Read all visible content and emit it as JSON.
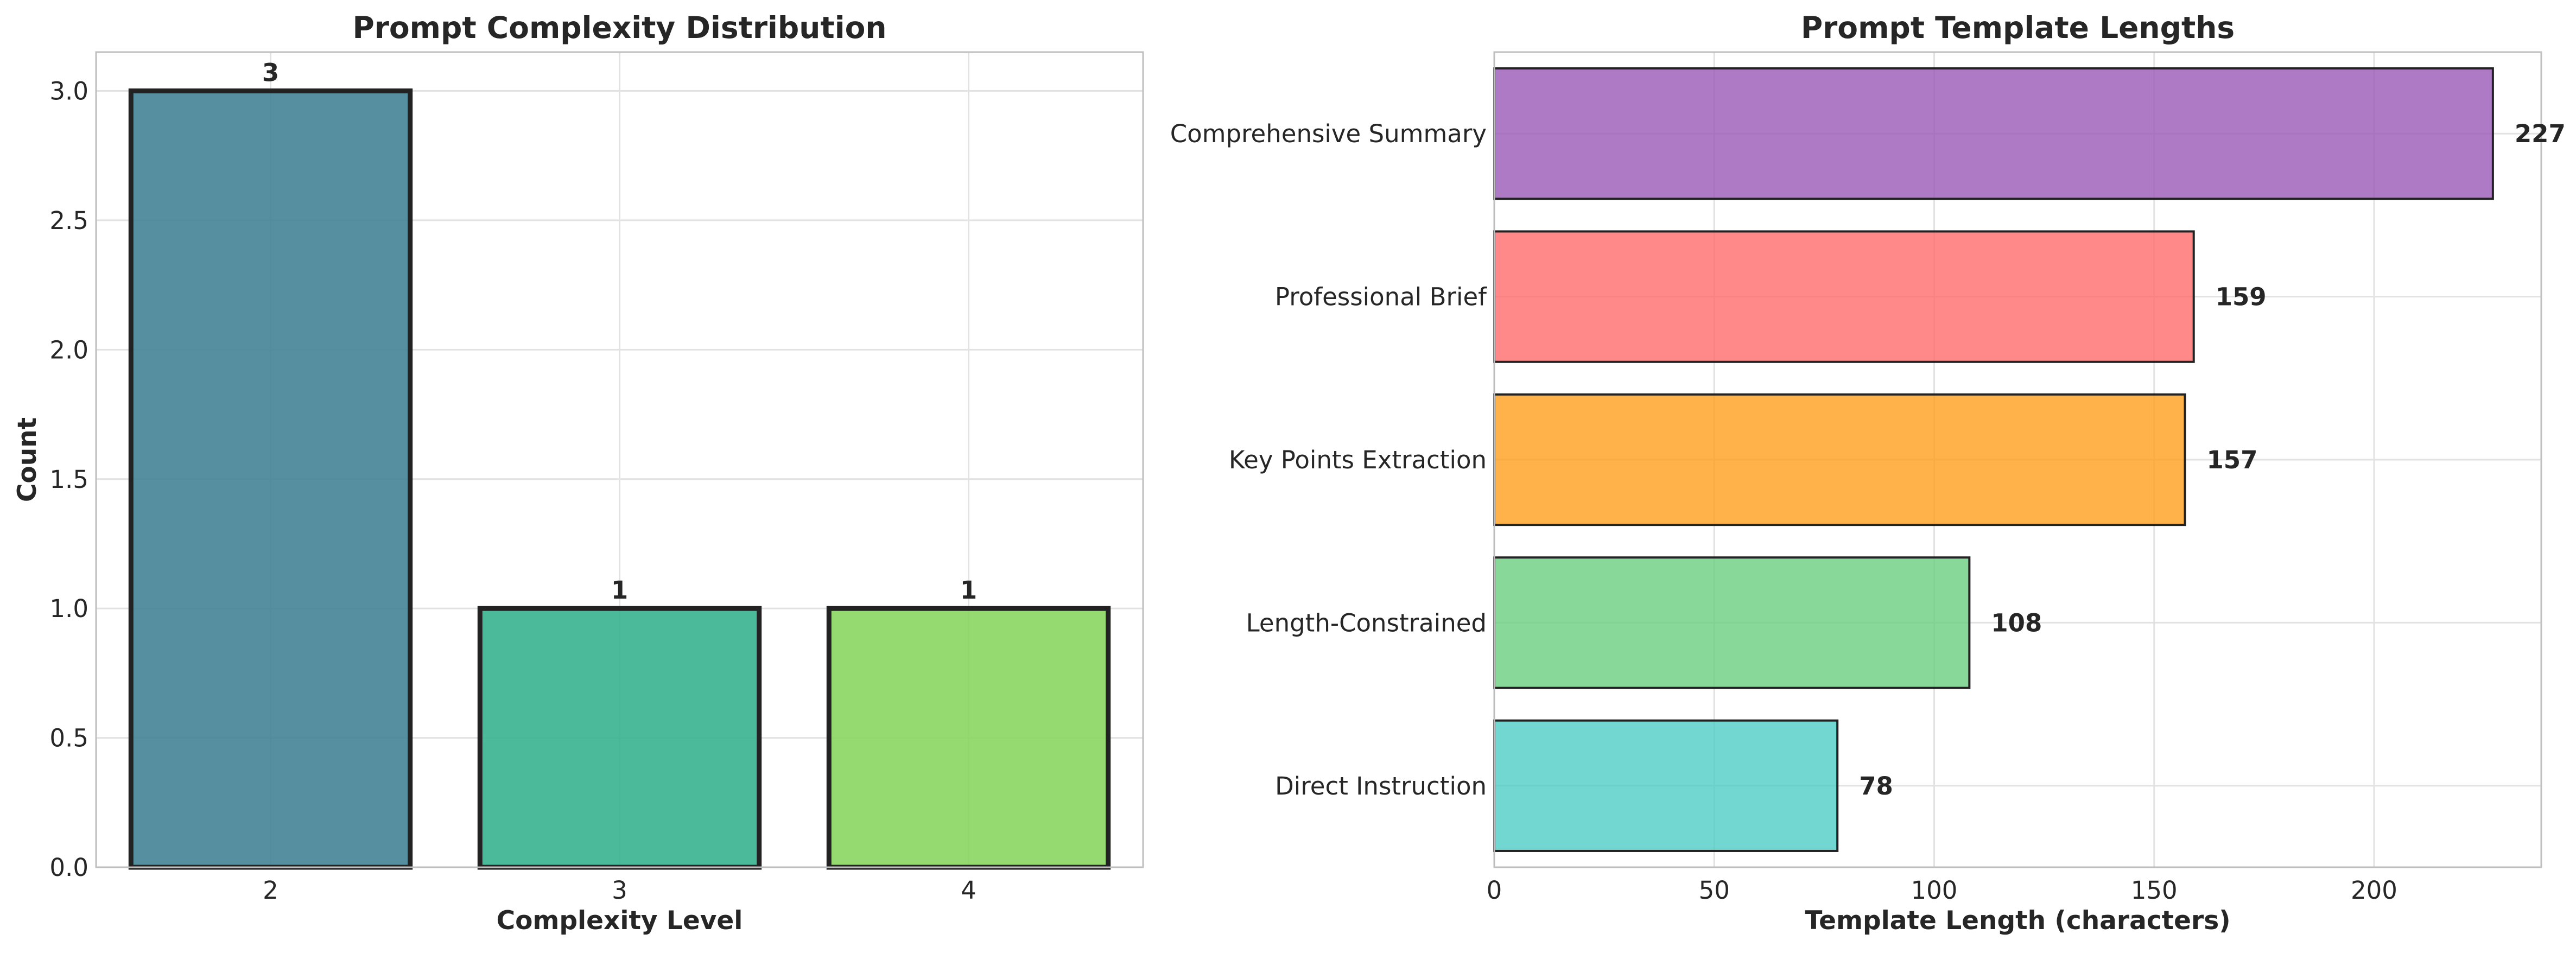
{
  "chart_data": [
    {
      "type": "bar",
      "title": "Prompt Complexity Distribution",
      "xlabel": "Complexity Level",
      "ylabel": "Count",
      "categories": [
        "2",
        "3",
        "4"
      ],
      "values": [
        3,
        1,
        1
      ],
      "value_labels": [
        "3",
        "1",
        "1"
      ],
      "colors": [
        "#3f7f93",
        "#32b08c",
        "#86d55c"
      ],
      "ylim": [
        0,
        3.15
      ],
      "yticks": [
        0.0,
        0.5,
        1.0,
        1.5,
        2.0,
        2.5,
        3.0
      ],
      "ytick_labels": [
        "0.0",
        "0.5",
        "1.0",
        "1.5",
        "2.0",
        "2.5",
        "3.0"
      ],
      "grid": true,
      "orientation": "vertical"
    },
    {
      "type": "bar",
      "title": "Prompt Template Lengths",
      "xlabel": "Template Length (characters)",
      "ylabel": "",
      "categories": [
        "Direct Instruction",
        "Length-Constrained",
        "Key Points Extraction",
        "Professional Brief",
        "Comprehensive Summary"
      ],
      "values": [
        78,
        108,
        157,
        159,
        227
      ],
      "value_labels": [
        "78",
        "108",
        "157",
        "159",
        "227"
      ],
      "colors": [
        "#4ecdc4",
        "#6acf7f",
        "#ff9f1c",
        "#ff6b6b",
        "#9b59b6"
      ],
      "xlim": [
        0,
        238
      ],
      "xticks": [
        0,
        50,
        100,
        150,
        200
      ],
      "xtick_labels": [
        "0",
        "50",
        "100",
        "150",
        "200"
      ],
      "grid": true,
      "orientation": "horizontal"
    }
  ]
}
